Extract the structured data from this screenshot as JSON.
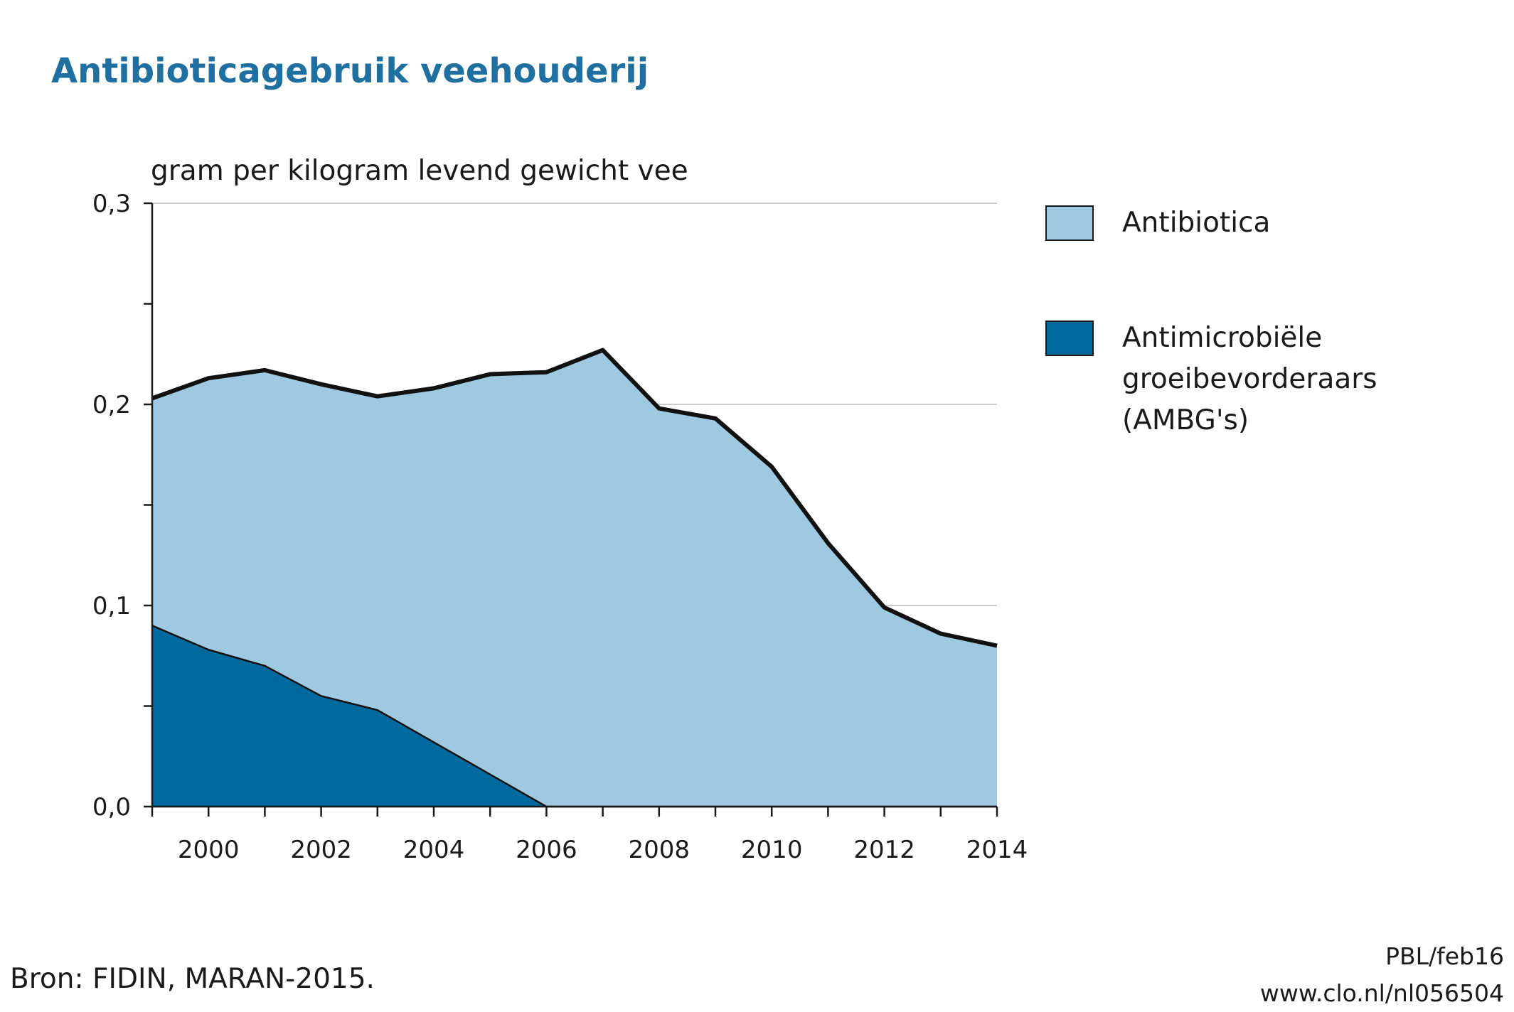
{
  "title": "Antibioticagebruik veehouderij",
  "y_unit_label": "gram per kilogram levend gewicht vee",
  "source": "Bron: FIDIN, MARAN-2015.",
  "credit_line1": "PBL/feb16",
  "credit_line2": "www.clo.nl/nl056504",
  "colors": {
    "antibiotica": "#9fc9e0",
    "ambg": "#006a9e",
    "outline": "#111111",
    "grid": "#cccccc",
    "title": "#1f6fa0"
  },
  "chart_data": {
    "type": "area",
    "stacked": true,
    "title": "Antibioticagebruik veehouderij",
    "ylabel": "gram per kilogram levend gewicht vee",
    "xlabel": "",
    "x": [
      1999,
      2000,
      2001,
      2002,
      2003,
      2004,
      2005,
      2006,
      2007,
      2008,
      2009,
      2010,
      2011,
      2012,
      2013,
      2014
    ],
    "xlim": [
      1999,
      2014
    ],
    "x_tick_labels": [
      "2000",
      "2002",
      "2004",
      "2006",
      "2008",
      "2010",
      "2012",
      "2014"
    ],
    "ylim": [
      0,
      0.3
    ],
    "y_tick_labels": [
      "0,0",
      "0,1",
      "0,2",
      "0,3"
    ],
    "grid": true,
    "legend_position": "right",
    "series": [
      {
        "name": "Antimicrobiële groeibevorderaars (AMBG's)",
        "values": [
          0.09,
          0.078,
          0.07,
          0.055,
          0.048,
          0.032,
          0.016,
          0.0,
          0.0,
          0.0,
          0.0,
          0.0,
          0.0,
          0.0,
          0.0,
          0.0
        ]
      },
      {
        "name": "Antibiotica",
        "values": [
          0.113,
          0.135,
          0.147,
          0.155,
          0.156,
          0.176,
          0.199,
          0.216,
          0.227,
          0.198,
          0.193,
          0.169,
          0.131,
          0.099,
          0.086,
          0.08
        ]
      }
    ]
  },
  "legend": {
    "items": [
      {
        "label": "Antibiotica"
      },
      {
        "label": "Antimicrobiële groeibevorderaars (AMBG's)"
      }
    ]
  }
}
